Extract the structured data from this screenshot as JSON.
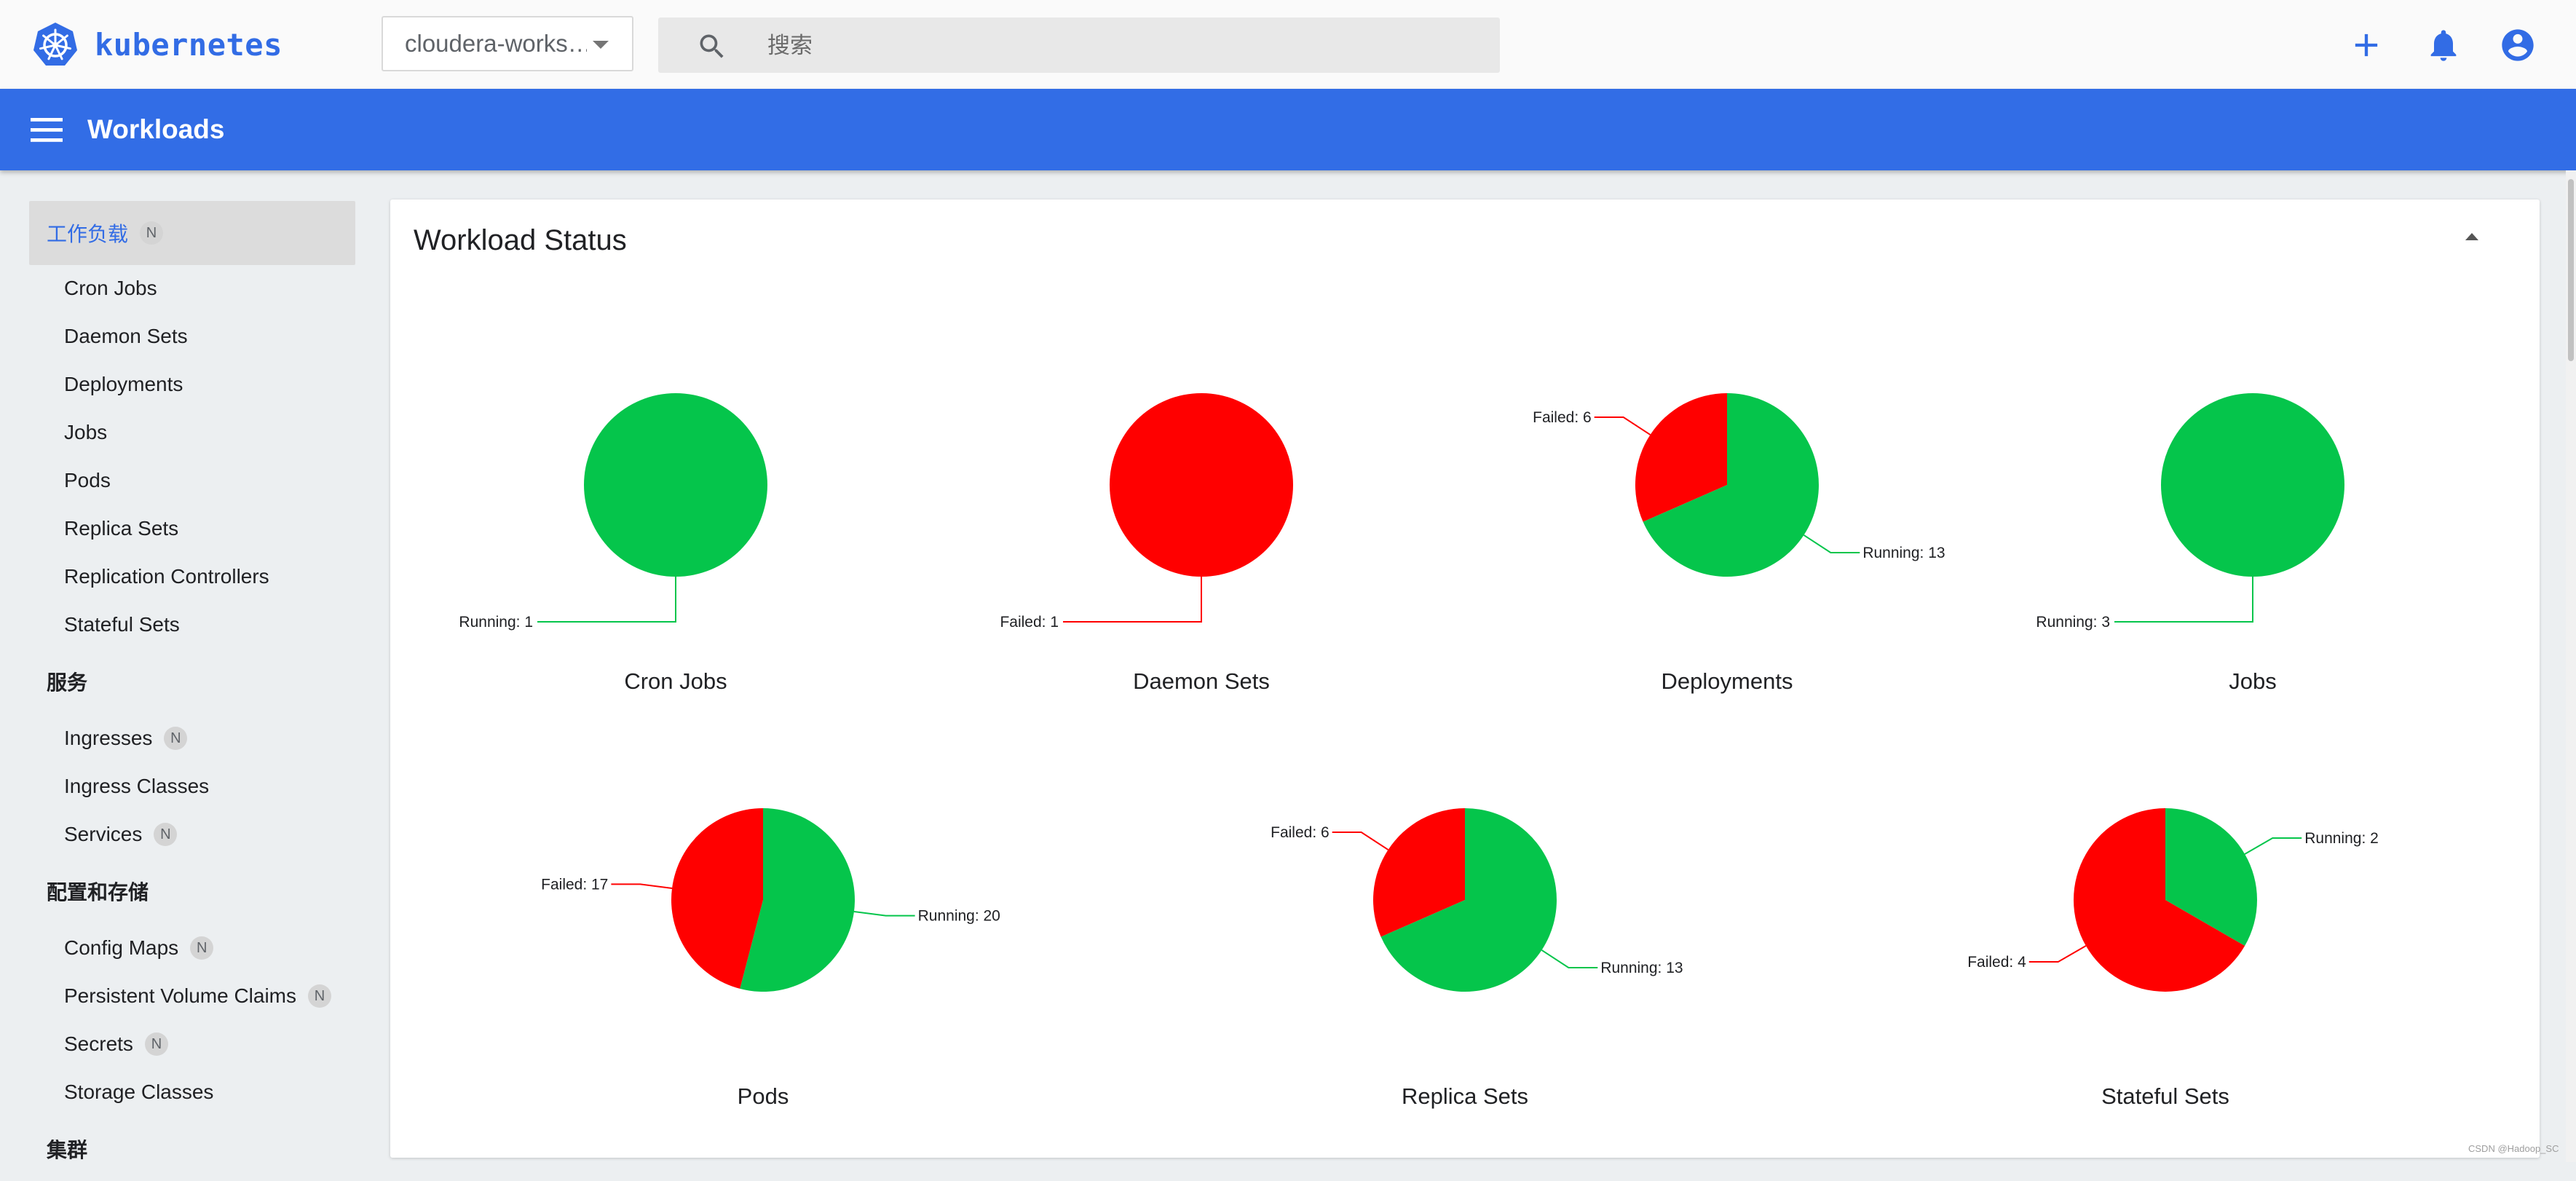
{
  "topbar": {
    "brand_name": "kubernetes",
    "namespace_value": "cloudera-works…",
    "search_placeholder": "搜索",
    "icons": {
      "logo": "kubernetes-wheel-icon",
      "search": "search-icon",
      "create": "plus-icon",
      "notifications": "bell-icon",
      "account": "account-circle-icon"
    }
  },
  "header": {
    "title": "Workloads",
    "menu_icon": "hamburger-menu-icon"
  },
  "sidebar": {
    "groups": [
      {
        "label": "工作负载",
        "badge": "N",
        "active": true,
        "items": [
          {
            "label": "Cron Jobs"
          },
          {
            "label": "Daemon Sets"
          },
          {
            "label": "Deployments"
          },
          {
            "label": "Jobs"
          },
          {
            "label": "Pods"
          },
          {
            "label": "Replica Sets"
          },
          {
            "label": "Replication Controllers"
          },
          {
            "label": "Stateful Sets"
          }
        ]
      },
      {
        "label": "服务",
        "items": [
          {
            "label": "Ingresses",
            "badge": "N"
          },
          {
            "label": "Ingress Classes"
          },
          {
            "label": "Services",
            "badge": "N"
          }
        ]
      },
      {
        "label": "配置和存储",
        "items": [
          {
            "label": "Config Maps",
            "badge": "N"
          },
          {
            "label": "Persistent Volume Claims",
            "badge": "N"
          },
          {
            "label": "Secrets",
            "badge": "N"
          },
          {
            "label": "Storage Classes"
          }
        ]
      },
      {
        "label": "集群",
        "items": []
      }
    ]
  },
  "card": {
    "title": "Workload Status"
  },
  "colors": {
    "running": "#05c54b",
    "failed": "#ff0000",
    "accent": "#326ce5"
  },
  "chart_data": [
    {
      "type": "pie",
      "title": "Cron Jobs",
      "slices": [
        {
          "name": "Running",
          "value": 1,
          "label": "Running: 1"
        }
      ]
    },
    {
      "type": "pie",
      "title": "Daemon Sets",
      "slices": [
        {
          "name": "Failed",
          "value": 1,
          "label": "Failed: 1"
        }
      ]
    },
    {
      "type": "pie",
      "title": "Deployments",
      "slices": [
        {
          "name": "Running",
          "value": 13,
          "label": "Running: 13"
        },
        {
          "name": "Failed",
          "value": 6,
          "label": "Failed: 6"
        }
      ]
    },
    {
      "type": "pie",
      "title": "Jobs",
      "slices": [
        {
          "name": "Running",
          "value": 3,
          "label": "Running: 3"
        }
      ]
    },
    {
      "type": "pie",
      "title": "Pods",
      "slices": [
        {
          "name": "Running",
          "value": 20,
          "label": "Running: 20"
        },
        {
          "name": "Failed",
          "value": 17,
          "label": "Failed: 17"
        }
      ]
    },
    {
      "type": "pie",
      "title": "Replica Sets",
      "slices": [
        {
          "name": "Running",
          "value": 13,
          "label": "Running: 13"
        },
        {
          "name": "Failed",
          "value": 6,
          "label": "Failed: 6"
        }
      ]
    },
    {
      "type": "pie",
      "title": "Stateful Sets",
      "slices": [
        {
          "name": "Running",
          "value": 2,
          "label": "Running: 2"
        },
        {
          "name": "Failed",
          "value": 4,
          "label": "Failed: 4"
        }
      ]
    }
  ],
  "watermark": "CSDN @Hadoop_SC"
}
